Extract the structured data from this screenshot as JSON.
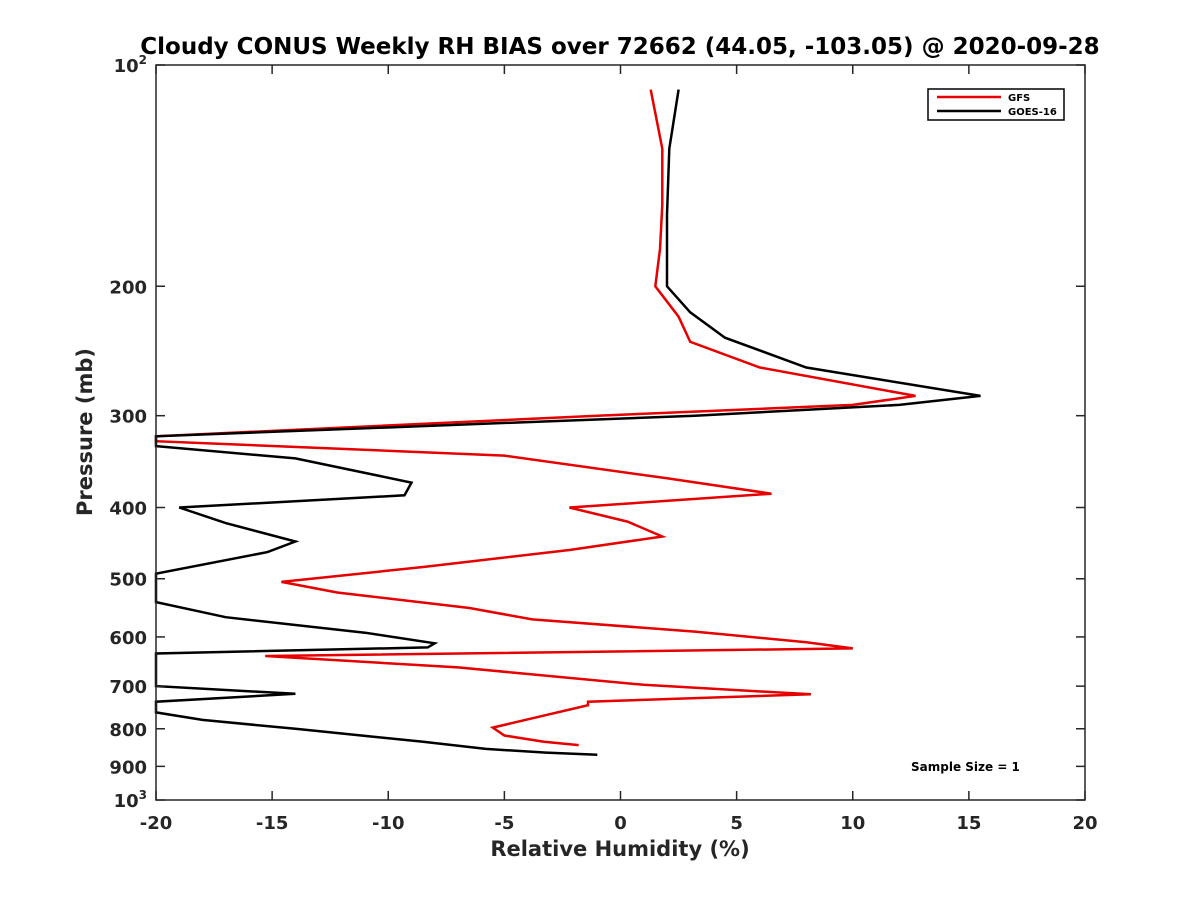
{
  "chart_data": {
    "type": "line",
    "title": "Cloudy CONUS Weekly RH BIAS over 72662 (44.05, -103.05) @ 2020-09-28",
    "xlabel": "Relative Humidity (%)",
    "ylabel": "Pressure (mb)",
    "xlim": [
      -20,
      20
    ],
    "ylim": [
      100,
      1000
    ],
    "y_scale": "log",
    "y_reversed": true,
    "grid": false,
    "legend_position": "top-right",
    "x_ticks": [
      -20,
      -15,
      -10,
      -5,
      0,
      5,
      10,
      15,
      20
    ],
    "x_tick_labels": [
      "-20",
      "-15",
      "-10",
      "-5",
      "0",
      "5",
      "10",
      "15",
      "20"
    ],
    "y_ticks": [
      {
        "value": 100,
        "base": "10",
        "exp": "2"
      },
      {
        "value": 200,
        "base": "200",
        "exp": ""
      },
      {
        "value": 300,
        "base": "300",
        "exp": ""
      },
      {
        "value": 400,
        "base": "400",
        "exp": ""
      },
      {
        "value": 500,
        "base": "500",
        "exp": ""
      },
      {
        "value": 600,
        "base": "600",
        "exp": ""
      },
      {
        "value": 700,
        "base": "700",
        "exp": ""
      },
      {
        "value": 800,
        "base": "800",
        "exp": ""
      },
      {
        "value": 900,
        "base": "900",
        "exp": ""
      },
      {
        "value": 1000,
        "base": "10",
        "exp": "3"
      }
    ],
    "annotation": "Sample Size = 1",
    "series": [
      {
        "name": "GFS",
        "color": "#e60000",
        "points": [
          [
            1.3,
            108
          ],
          [
            1.8,
            130
          ],
          [
            1.8,
            155
          ],
          [
            1.7,
            178
          ],
          [
            1.5,
            200
          ],
          [
            2.5,
            220
          ],
          [
            3.0,
            238
          ],
          [
            6.0,
            258
          ],
          [
            12.7,
            282
          ],
          [
            10.0,
            290
          ],
          [
            -1.0,
            300
          ],
          [
            -20.0,
            320
          ],
          [
            -20.0,
            325
          ],
          [
            -5.0,
            340
          ],
          [
            2.0,
            365
          ],
          [
            6.5,
            383
          ],
          [
            -2.2,
            400
          ],
          [
            0.3,
            418
          ],
          [
            1.8,
            438
          ],
          [
            -2.2,
            457
          ],
          [
            -8.5,
            482
          ],
          [
            -14.6,
            505
          ],
          [
            -12.2,
            522
          ],
          [
            -6.5,
            548
          ],
          [
            -3.8,
            568
          ],
          [
            3.2,
            590
          ],
          [
            8.0,
            610
          ],
          [
            10.0,
            622
          ],
          [
            -15.3,
            637
          ],
          [
            -7.0,
            660
          ],
          [
            1.0,
            697
          ],
          [
            8.2,
            718
          ],
          [
            -1.4,
            735
          ],
          [
            -1.4,
            743
          ],
          [
            -5.5,
            797
          ],
          [
            -5.0,
            817
          ],
          [
            -3.3,
            833
          ],
          [
            -1.8,
            842
          ]
        ]
      },
      {
        "name": "GOES-16",
        "color": "#000000",
        "points": [
          [
            2.5,
            108
          ],
          [
            2.1,
            130
          ],
          [
            2.0,
            160
          ],
          [
            2.0,
            182
          ],
          [
            2.0,
            200
          ],
          [
            3.0,
            217
          ],
          [
            4.5,
            235
          ],
          [
            8.0,
            258
          ],
          [
            15.5,
            282
          ],
          [
            12.0,
            290
          ],
          [
            3.2,
            300
          ],
          [
            -20.0,
            320
          ],
          [
            -20.0,
            330
          ],
          [
            -14.0,
            343
          ],
          [
            -9.0,
            370
          ],
          [
            -9.3,
            385
          ],
          [
            -19.0,
            400
          ],
          [
            -17.0,
            420
          ],
          [
            -14.0,
            445
          ],
          [
            -15.2,
            460
          ],
          [
            -20.0,
            492
          ],
          [
            -20.0,
            538
          ],
          [
            -17.0,
            564
          ],
          [
            -11.0,
            592
          ],
          [
            -8.0,
            612
          ],
          [
            -8.3,
            620
          ],
          [
            -20.0,
            632
          ],
          [
            -20.0,
            700
          ],
          [
            -14.0,
            717
          ],
          [
            -20.0,
            735
          ],
          [
            -20.0,
            760
          ],
          [
            -18.0,
            778
          ],
          [
            -14.0,
            800
          ],
          [
            -11.0,
            818
          ],
          [
            -8.5,
            833
          ],
          [
            -5.8,
            852
          ],
          [
            -3.2,
            862
          ],
          [
            -1.0,
            868
          ]
        ]
      }
    ]
  }
}
